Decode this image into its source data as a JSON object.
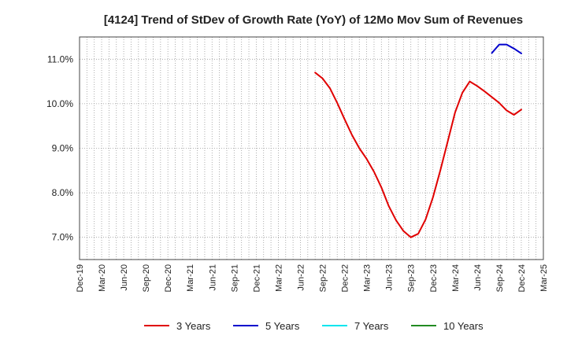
{
  "chart_data": {
    "type": "line",
    "title": "[4124]  Trend of StDev of Growth Rate (YoY) of 12Mo Mov Sum of Revenues",
    "xlabel": "",
    "ylabel": "",
    "grid": true,
    "legend_position": "bottom",
    "ylim": [
      6.5,
      11.5
    ],
    "y_ticks": [
      7.0,
      8.0,
      9.0,
      10.0,
      11.0
    ],
    "y_tick_labels": [
      "7.0%",
      "8.0%",
      "9.0%",
      "10.0%",
      "11.0%"
    ],
    "x_range": [
      "2019-12",
      "2025-03"
    ],
    "x_tick_labels": [
      "Dec-19",
      "Mar-20",
      "Jun-20",
      "Sep-20",
      "Dec-20",
      "Mar-21",
      "Jun-21",
      "Sep-21",
      "Dec-21",
      "Mar-22",
      "Jun-22",
      "Sep-22",
      "Dec-22",
      "Mar-23",
      "Jun-23",
      "Sep-23",
      "Dec-23",
      "Mar-24",
      "Jun-24",
      "Sep-24",
      "Dec-24",
      "Mar-25"
    ],
    "series": [
      {
        "name": "3 Years",
        "color": "#e00000",
        "x": [
          "2022-08",
          "2022-09",
          "2022-10",
          "2022-11",
          "2022-12",
          "2023-01",
          "2023-02",
          "2023-03",
          "2023-04",
          "2023-05",
          "2023-06",
          "2023-07",
          "2023-08",
          "2023-09",
          "2023-10",
          "2023-11",
          "2023-12",
          "2024-01",
          "2024-02",
          "2024-03",
          "2024-04",
          "2024-05",
          "2024-06",
          "2024-07",
          "2024-08",
          "2024-09",
          "2024-10",
          "2024-11",
          "2024-12"
        ],
        "values": [
          10.7,
          10.57,
          10.35,
          10.02,
          9.65,
          9.3,
          9.0,
          8.76,
          8.47,
          8.12,
          7.7,
          7.38,
          7.14,
          7.0,
          7.08,
          7.4,
          7.9,
          8.5,
          9.15,
          9.8,
          10.25,
          10.5,
          10.4,
          10.28,
          10.15,
          10.02,
          9.85,
          9.75,
          9.87
        ]
      },
      {
        "name": "5 Years",
        "color": "#0000cc",
        "x": [
          "2024-08",
          "2024-09",
          "2024-10",
          "2024-11",
          "2024-12"
        ],
        "values": [
          11.14,
          11.33,
          11.33,
          11.24,
          11.13
        ]
      },
      {
        "name": "7 Years",
        "color": "#00e5ee",
        "x": [],
        "values": []
      },
      {
        "name": "10 Years",
        "color": "#228b22",
        "x": [],
        "values": []
      }
    ]
  }
}
